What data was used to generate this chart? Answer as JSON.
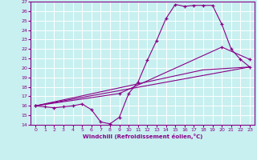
{
  "xlabel": "Windchill (Refroidissement éolien,°C)",
  "xlim": [
    -0.5,
    23.5
  ],
  "ylim": [
    14,
    27
  ],
  "xticks": [
    0,
    1,
    2,
    3,
    4,
    5,
    6,
    7,
    8,
    9,
    10,
    11,
    12,
    13,
    14,
    15,
    16,
    17,
    18,
    19,
    20,
    21,
    22,
    23
  ],
  "yticks": [
    14,
    15,
    16,
    17,
    18,
    19,
    20,
    21,
    22,
    23,
    24,
    25,
    26,
    27
  ],
  "bg_color": "#c8f0f0",
  "line_color": "#880088",
  "grid_color": "#ffffff",
  "lines": [
    {
      "x": [
        0,
        1,
        2,
        3,
        4,
        5,
        6,
        7,
        8,
        9,
        10,
        11,
        12,
        13,
        14,
        15,
        16,
        17,
        18,
        19,
        20,
        21,
        22,
        23
      ],
      "y": [
        16.0,
        15.9,
        15.8,
        15.9,
        16.0,
        16.2,
        15.6,
        14.3,
        14.1,
        14.8,
        17.3,
        18.5,
        20.8,
        22.9,
        25.2,
        26.7,
        26.5,
        26.6,
        26.6,
        26.6,
        24.6,
        22.0,
        20.9,
        20.1
      ],
      "markers": true
    },
    {
      "x": [
        0,
        23
      ],
      "y": [
        16.0,
        20.1
      ],
      "markers": false
    },
    {
      "x": [
        0,
        18,
        23
      ],
      "y": [
        16.0,
        19.8,
        20.1
      ],
      "markers": false
    },
    {
      "x": [
        0,
        9,
        20,
        23
      ],
      "y": [
        16.0,
        17.3,
        22.2,
        20.9
      ],
      "markers": true
    }
  ]
}
